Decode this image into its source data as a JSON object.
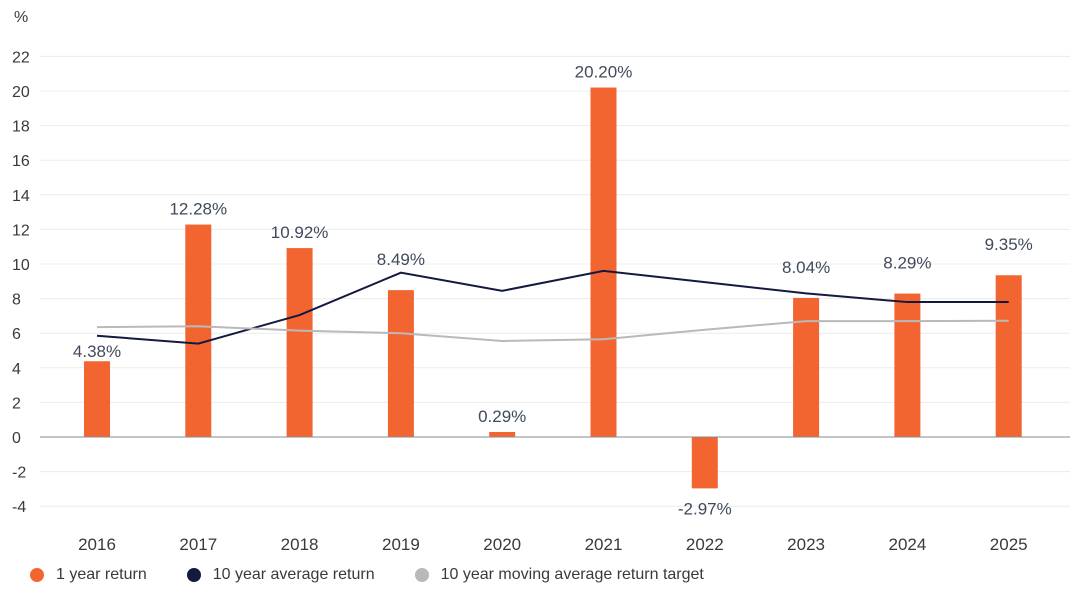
{
  "chart_data": {
    "type": "bar",
    "unit_label": "%",
    "categories": [
      "2016",
      "2017",
      "2018",
      "2019",
      "2020",
      "2021",
      "2022",
      "2023",
      "2024",
      "2025"
    ],
    "series": [
      {
        "name": "1 year return",
        "kind": "bar",
        "color": "#f26531",
        "values": [
          4.38,
          12.28,
          10.92,
          8.49,
          0.29,
          20.2,
          -2.97,
          8.04,
          8.29,
          9.35
        ],
        "labels": [
          "4.38%",
          "12.28%",
          "10.92%",
          "8.49%",
          "0.29%",
          "20.20%",
          "-2.97%",
          "8.04%",
          "8.29%",
          "9.35%"
        ]
      },
      {
        "name": "10 year average return",
        "kind": "line",
        "color": "#14193f",
        "values": [
          5.85,
          5.4,
          7.05,
          9.5,
          8.45,
          9.6,
          8.95,
          8.3,
          7.8,
          7.8
        ]
      },
      {
        "name": "10 year moving average return target",
        "kind": "line",
        "color": "#b9b9b9",
        "values": [
          6.35,
          6.4,
          6.15,
          6.0,
          5.55,
          5.65,
          6.2,
          6.7,
          6.7,
          6.72
        ]
      }
    ],
    "ylim": [
      -5,
      23
    ],
    "yticks": [
      -4,
      -2,
      0,
      2,
      4,
      6,
      8,
      10,
      12,
      14,
      16,
      18,
      20,
      22
    ],
    "ytick_labels": [
      "-4",
      "-2",
      "0",
      "2",
      "4",
      "6",
      "8",
      "10",
      "12",
      "14",
      "16",
      "18",
      "20",
      "22"
    ],
    "legend_position": "bottom-left"
  }
}
